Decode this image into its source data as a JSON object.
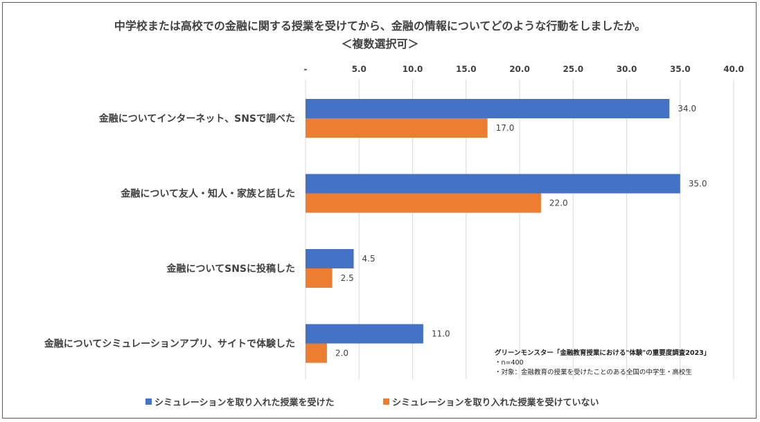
{
  "chart_data": {
    "type": "bar",
    "orientation": "horizontal",
    "title": "中学校または高校での金融に関する授業を受けてから、金融の情報についてどのような行動をしましたか。",
    "subtitle": "＜複数選択可＞",
    "categories": [
      "金融についてインターネット、SNSで調べた",
      "金融について友人・知人・家族と話した",
      "金融についてSNSに投稿した",
      "金融についてシミュレーションアプリ、サイトで体験した"
    ],
    "series": [
      {
        "name": "シミュレーションを取り入れた授業を受けた",
        "color": "#4472c4",
        "values": [
          34.0,
          35.0,
          4.5,
          11.0
        ],
        "labels": [
          "34.0",
          "35.0",
          "4.5",
          "11.0"
        ]
      },
      {
        "name": "シミュレーションを取り入れた授業を受けていない",
        "color": "#ed7d31",
        "values": [
          17.0,
          22.0,
          2.5,
          2.0
        ],
        "labels": [
          "17.0",
          "22.0",
          "2.5",
          "2.0"
        ]
      }
    ],
    "xlim": [
      0,
      40
    ],
    "xticks": [
      "-",
      "5.0",
      "10.0",
      "15.0",
      "20.0",
      "25.0",
      "30.0",
      "35.0",
      "40.0"
    ],
    "xtick_values": [
      0,
      5,
      10,
      15,
      20,
      25,
      30,
      35,
      40
    ],
    "grid": true,
    "legend_position": "bottom"
  },
  "source": {
    "heading": "グリーンモンスター「金融教育授業における\"体験\"の重要度調査2023」",
    "lines": [
      "・n=400",
      "・対象：金融教育の授業を受けたことのある全国の中学生・高校生"
    ]
  },
  "colors": {
    "series1": "#4472c4",
    "series2": "#ed7d31",
    "grid": "#d9d9d9",
    "text": "#404040"
  }
}
